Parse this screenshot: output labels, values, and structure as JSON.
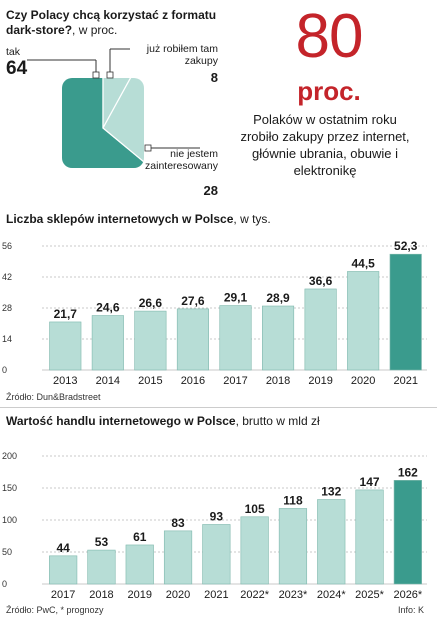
{
  "pie": {
    "title": "Czy Polacy chcą korzystać z formatu dark-store?",
    "subtitle": ", w proc.",
    "chart_data": {
      "type": "pie",
      "categories": [
        "tak",
        "już robiłem tam zakupy",
        "nie jestem zainteresowany"
      ],
      "values": [
        64,
        8,
        28
      ],
      "colors": [
        "#3a9b8d",
        "#b7ddd6",
        "#b7ddd6"
      ]
    },
    "labels": {
      "yes": {
        "name": "tak",
        "value": "64"
      },
      "done": {
        "name": "już robiłem tam zakupy",
        "value": "8"
      },
      "no": {
        "name": "nie jestem zainteresowany",
        "value": "28"
      }
    }
  },
  "highlight": {
    "number": "80",
    "unit": "proc.",
    "text": "Polaków w ostatnim roku zrobiło zakupy przez internet, głównie ubrania, obuwie i elektronikę"
  },
  "shops": {
    "title_bold": "Liczba sklepów internetowych w Polsce",
    "title_rest": ", w tys.",
    "source": "Źródło: Dun&Bradstreet",
    "chart_data": {
      "type": "bar",
      "categories": [
        "2013",
        "2014",
        "2015",
        "2016",
        "2017",
        "2018",
        "2019",
        "2020",
        "2021"
      ],
      "values": [
        21.7,
        24.6,
        26.6,
        27.6,
        29.1,
        28.9,
        36.6,
        44.5,
        52.3
      ],
      "value_labels": [
        "21,7",
        "24,6",
        "26,6",
        "27,6",
        "29,1",
        "28,9",
        "36,6",
        "44,5",
        "52,3"
      ],
      "ylim": [
        0,
        56
      ],
      "yticks": [
        0,
        14,
        28,
        42,
        56
      ],
      "highlight_index": 8,
      "grid": true,
      "colors": {
        "bar": "#b7ddd6",
        "highlight": "#3a9b8d"
      }
    }
  },
  "trade": {
    "title_bold": "Wartość handlu internetowego w Polsce",
    "title_rest": ", brutto w mld zł",
    "source": "Źródło: PwC, * prognozy",
    "credit": "Info: K",
    "chart_data": {
      "type": "bar",
      "categories": [
        "2017",
        "2018",
        "2019",
        "2020",
        "2021",
        "2022*",
        "2023*",
        "2024*",
        "2025*",
        "2026*"
      ],
      "values": [
        44,
        53,
        61,
        83,
        93,
        105,
        118,
        132,
        147,
        162
      ],
      "value_labels": [
        "44",
        "53",
        "61",
        "83",
        "93",
        "105",
        "118",
        "132",
        "147",
        "162"
      ],
      "ylim": [
        0,
        200
      ],
      "yticks": [
        0,
        50,
        100,
        150,
        200
      ],
      "highlight_index": 9,
      "grid": true,
      "colors": {
        "bar": "#b7ddd6",
        "highlight": "#3a9b8d"
      }
    }
  }
}
